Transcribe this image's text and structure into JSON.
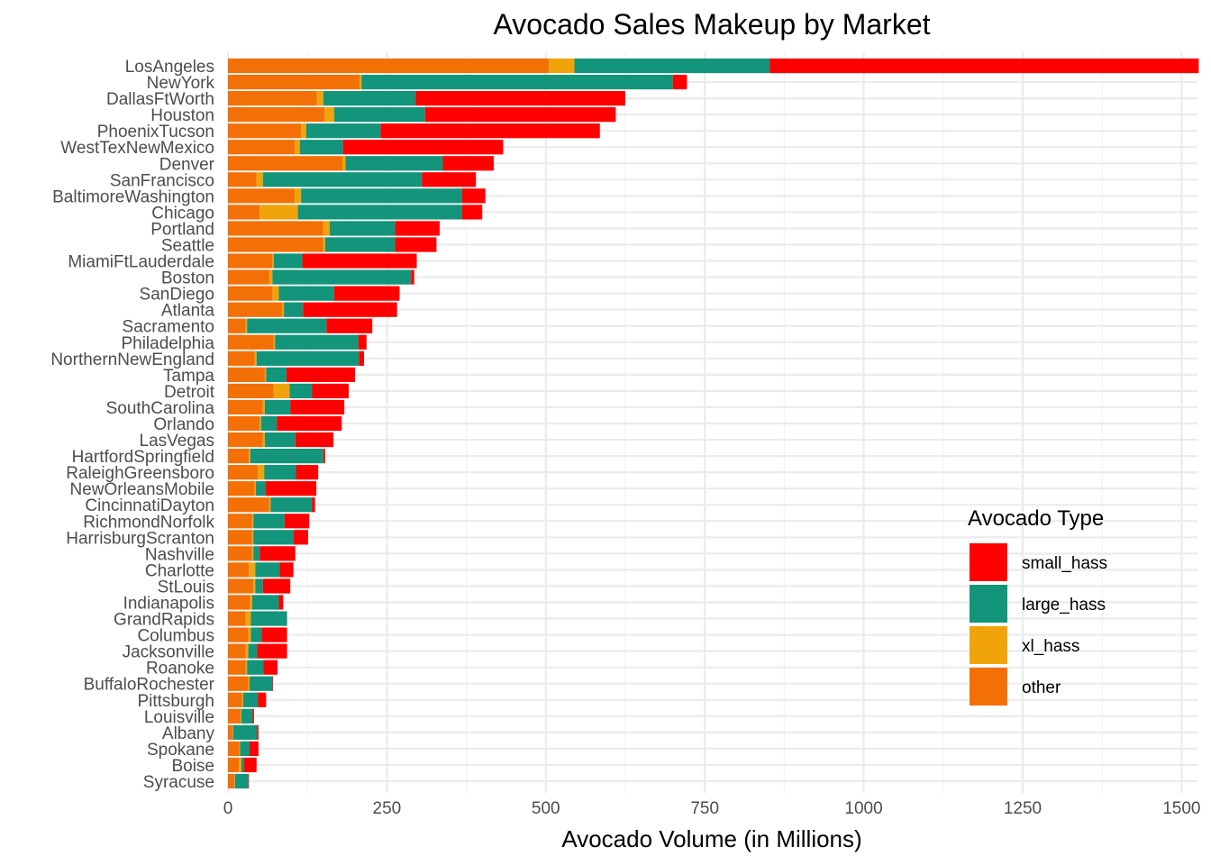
{
  "chart_data": {
    "type": "bar",
    "orientation": "horizontal",
    "stacked": true,
    "title": "Avocado Sales Makeup by Market",
    "xlabel": "Avocado Volume (in Millions)",
    "ylabel": "",
    "xlim": [
      0,
      1525
    ],
    "xticks": [
      0,
      250,
      500,
      750,
      1000,
      1250,
      1500
    ],
    "grid": true,
    "legend": {
      "title": "Avocado Type",
      "placement": "bottom-right",
      "entries": [
        "small_hass",
        "large_hass",
        "xl_hass",
        "other"
      ]
    },
    "colors": {
      "other": "#F37007",
      "xl_hass": "#F0A30A",
      "large_hass": "#12957A",
      "small_hass": "#FF0000"
    },
    "categories": [
      "LosAngeles",
      "NewYork",
      "DallasFtWorth",
      "Houston",
      "PhoenixTucson",
      "WestTexNewMexico",
      "Denver",
      "SanFrancisco",
      "BaltimoreWashington",
      "Chicago",
      "Portland",
      "Seattle",
      "MiamiFtLauderdale",
      "Boston",
      "SanDiego",
      "Atlanta",
      "Sacramento",
      "Philadelphia",
      "NorthernNewEngland",
      "Tampa",
      "Detroit",
      "SouthCarolina",
      "Orlando",
      "LasVegas",
      "HartfordSpringfield",
      "RaleighGreensboro",
      "NewOrleansMobile",
      "CincinnatiDayton",
      "RichmondNorfolk",
      "HarrisburgScranton",
      "Nashville",
      "Charlotte",
      "StLouis",
      "Indianapolis",
      "GrandRapids",
      "Columbus",
      "Jacksonville",
      "Roanoke",
      "BuffaloRochester",
      "Pittsburgh",
      "Louisville",
      "Albany",
      "Spokane",
      "Boise",
      "Syracuse"
    ],
    "series": [
      {
        "name": "other",
        "values": [
          505,
          207,
          140,
          152,
          115,
          105,
          180,
          45,
          105,
          50,
          150,
          150,
          70,
          65,
          70,
          85,
          28,
          72,
          42,
          58,
          72,
          55,
          50,
          55,
          33,
          47,
          42,
          65,
          38,
          38,
          38,
          33,
          40,
          35,
          28,
          32,
          28,
          28,
          32,
          22,
          20,
          7,
          18,
          17,
          10
        ]
      },
      {
        "name": "xl_hass",
        "values": [
          40,
          3,
          10,
          15,
          8,
          8,
          5,
          10,
          10,
          60,
          10,
          3,
          2,
          5,
          10,
          3,
          2,
          2,
          3,
          2,
          25,
          3,
          2,
          3,
          2,
          10,
          2,
          2,
          2,
          2,
          2,
          10,
          3,
          3,
          8,
          4,
          4,
          2,
          2,
          2,
          1,
          1,
          1,
          4,
          1
        ]
      },
      {
        "name": "large_hass",
        "values": [
          307,
          490,
          145,
          143,
          117,
          68,
          153,
          250,
          253,
          258,
          103,
          110,
          45,
          218,
          87,
          30,
          125,
          131,
          161,
          32,
          35,
          40,
          25,
          48,
          115,
          50,
          15,
          65,
          49,
          63,
          10,
          38,
          12,
          42,
          57,
          17,
          14,
          26,
          36,
          23,
          18,
          38,
          15,
          4,
          21
        ]
      },
      {
        "name": "small_hass",
        "values": [
          675,
          22,
          330,
          300,
          345,
          252,
          80,
          85,
          37,
          32,
          70,
          65,
          180,
          5,
          103,
          148,
          72,
          13,
          8,
          108,
          58,
          85,
          102,
          60,
          3,
          35,
          80,
          5,
          39,
          23,
          56,
          22,
          43,
          7,
          0,
          40,
          47,
          22,
          1,
          13,
          2,
          2,
          14,
          20,
          1
        ]
      }
    ]
  }
}
